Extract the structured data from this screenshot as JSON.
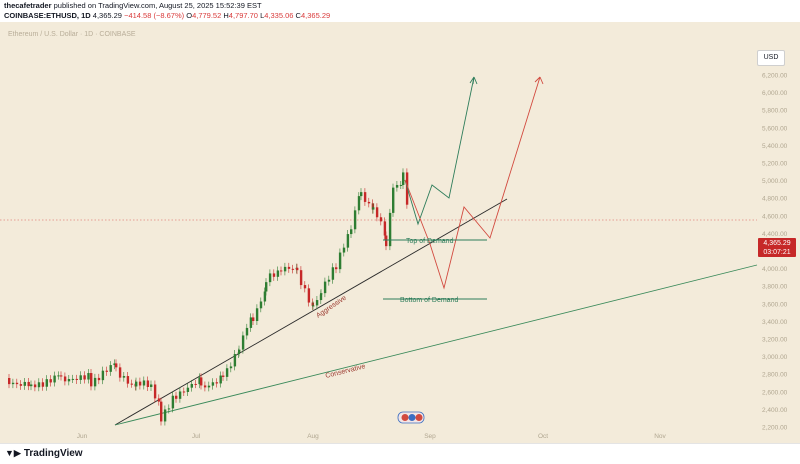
{
  "header": {
    "author": "thecafetrader",
    "published_line": " published on TradingView.com, August 25, 2025 15:52:39 EST",
    "symbol": "COINBASE:ETHUSD, 1D",
    "last": "4,365.29",
    "change": "−414.58 (−8.67%)",
    "o_label": "O",
    "o_value": "4,779.52",
    "h_label": "H",
    "h_value": "4,797.70",
    "l_label": "L",
    "l_value": "4,335.06",
    "c_label": "C",
    "c_value": "4,365.29"
  },
  "chart": {
    "title": "Ethereum / U.S. Dollar · 1D · COINBASE",
    "currency_button": "USD",
    "price_tag_value": "4,365.29",
    "price_tag_countdown": "03:07:21",
    "y_ticks": [
      "6,200.00",
      "6,000.00",
      "5,800.00",
      "5,600.00",
      "5,400.00",
      "5,200.00",
      "5,000.00",
      "4,800.00",
      "4,600.00",
      "4,400.00",
      "4,200.00",
      "4,000.00",
      "3,800.00",
      "3,600.00",
      "3,400.00",
      "3,200.00",
      "3,000.00",
      "2,800.00",
      "2,600.00",
      "2,400.00",
      "2,200.00"
    ],
    "x_ticks": [
      "Jun",
      "Jul",
      "Aug",
      "Sep",
      "Oct",
      "Nov"
    ],
    "annotations": {
      "top_of_demand": "Top of Demand",
      "bottom_of_demand": "Bottom of Demand",
      "aggressive": "Aggressive",
      "conservative": "Conservative"
    },
    "colors": {
      "background": "#f3ebda",
      "up": "#2e7d32",
      "down": "#c62828",
      "demand_line": "#2e7d5b",
      "trendline_aggressive": "#2b2b2b",
      "trendline_conservative": "#3a8a5a",
      "path_green": "#2e7d5b",
      "path_red": "#d24a3f"
    }
  },
  "footer": {
    "brand": "TradingView"
  }
}
